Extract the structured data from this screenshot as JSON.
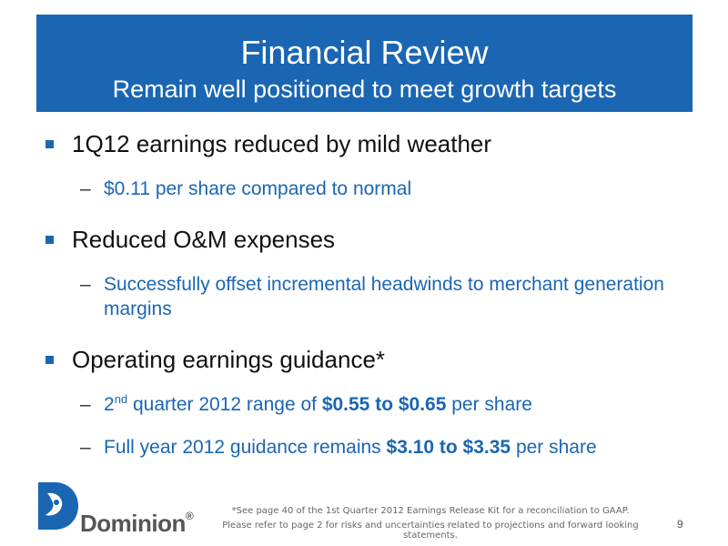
{
  "header": {
    "title": "Financial Review",
    "subtitle": "Remain well positioned to meet growth targets"
  },
  "bullets": [
    {
      "text": "1Q12 earnings reduced by mild weather"
    },
    {
      "text": "Reduced O&M expenses"
    },
    {
      "text": "Operating earnings guidance*"
    }
  ],
  "subs": {
    "weather": "$0.11 per share compared to normal",
    "om": "Successfully offset incremental headwinds to merchant generation margins",
    "q2_prefix": "2",
    "q2_sup": "nd",
    "q2_mid": " quarter 2012 range of ",
    "q2_bold": "$0.55 to $0.65",
    "q2_suffix": " per share",
    "fy_prefix": "Full year 2012 guidance remains ",
    "fy_bold": "$3.10 to $3.35",
    "fy_suffix": " per share"
  },
  "dash": "–",
  "footer": {
    "note1": "*See page 40 of the 1st Quarter 2012 Earnings Release Kit for a reconciliation to GAAP.",
    "note2": "Please refer to page 2 for risks and uncertainties related to projections and forward looking statements.",
    "page_number": "9"
  },
  "logo": {
    "text": "Dominion",
    "registered": "®",
    "icon": "dominion-logo-icon",
    "colors": {
      "blue": "#1a66b3",
      "gray": "#555555"
    }
  }
}
